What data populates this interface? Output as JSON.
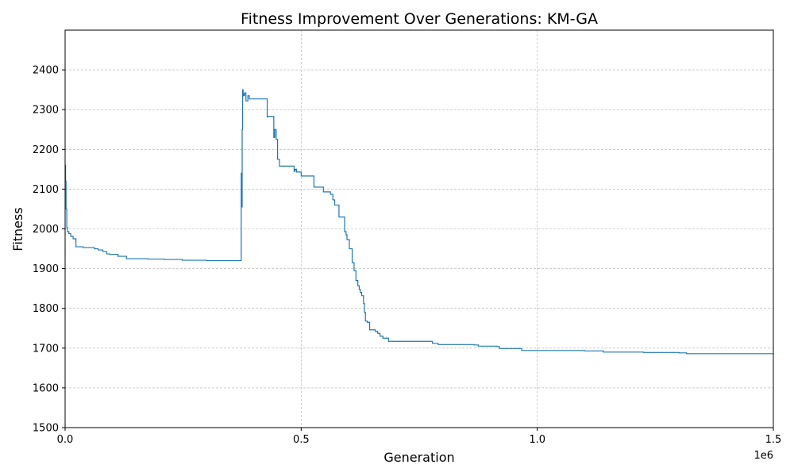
{
  "chart_data": {
    "type": "line",
    "title": "Fitness Improvement Over Generations: KM-GA",
    "xlabel": "Generation",
    "ylabel": "Fitness",
    "x_offset_label": "1e6",
    "xlim": [
      0,
      1500000
    ],
    "ylim": [
      1500,
      2500
    ],
    "x_ticks": [
      0,
      500000,
      1000000,
      1500000
    ],
    "x_tick_labels": [
      "0.0",
      "0.5",
      "1.0",
      "1.5"
    ],
    "y_ticks": [
      1500,
      1600,
      1700,
      1800,
      1900,
      2000,
      2100,
      2200,
      2300,
      2400
    ],
    "y_tick_labels": [
      "1500",
      "1600",
      "1700",
      "1800",
      "1900",
      "2000",
      "2100",
      "2200",
      "2300",
      "2400"
    ],
    "grid": true,
    "line_color": "#1f77b4",
    "series": [
      {
        "step": true,
        "x": [
          0,
          1000,
          2000,
          3500,
          5000,
          8000,
          12000,
          17000,
          23000,
          38000,
          62000,
          70000,
          80000,
          88000,
          95000,
          112000,
          130000,
          175000,
          210000,
          248000,
          300000,
          373000,
          374000,
          375000,
          376000,
          377000,
          378000,
          380000,
          383000,
          387000,
          390000,
          400000,
          428000,
          430000,
          440000,
          442000,
          444000,
          447000,
          450000,
          454000,
          458000,
          465000,
          485000,
          487000,
          490000,
          500000,
          505000,
          527000,
          547000,
          562000,
          567000,
          571000,
          580000,
          592000,
          595000,
          597000,
          602000,
          608000,
          612000,
          616000,
          620000,
          623000,
          625000,
          628000,
          632000,
          634000,
          636000,
          640000,
          645000,
          657000,
          662000,
          667000,
          673000,
          685000,
          698000,
          778000,
          790000,
          850000,
          866000,
          875000,
          915000,
          920000,
          967000,
          1100000,
          1140000,
          1225000,
          1300000,
          1316000,
          1500000
        ],
        "y": [
          2160,
          2120,
          2050,
          2003,
          1993,
          1988,
          1981,
          1975,
          1955,
          1953,
          1950,
          1947,
          1943,
          1937,
          1936,
          1931,
          1925,
          1924,
          1923,
          1921,
          1920,
          2140,
          2055,
          2250,
          2350,
          2340,
          2335,
          2342,
          2322,
          2335,
          2327,
          2327,
          2282,
          2283,
          2283,
          2230,
          2250,
          2225,
          2175,
          2158,
          2158,
          2158,
          2145,
          2150,
          2143,
          2133,
          2133,
          2105,
          2093,
          2087,
          2073,
          2060,
          2030,
          1993,
          1985,
          1973,
          1950,
          1915,
          1895,
          1870,
          1857,
          1848,
          1840,
          1832,
          1812,
          1790,
          1768,
          1765,
          1746,
          1742,
          1737,
          1730,
          1725,
          1717,
          1717,
          1712,
          1709,
          1709,
          1708,
          1705,
          1704,
          1699,
          1694,
          1693,
          1690,
          1689,
          1688,
          1686,
          1685
        ]
      }
    ]
  }
}
